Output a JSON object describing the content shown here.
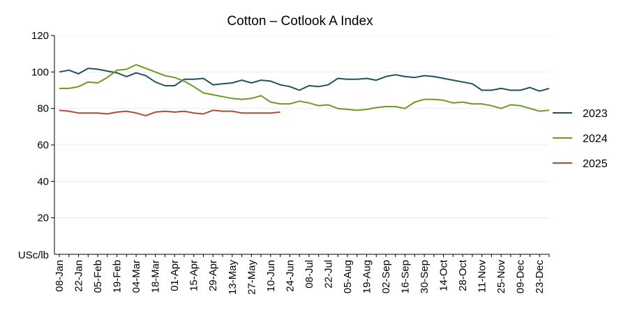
{
  "chart_data": {
    "type": "line",
    "title": "Cotton – Cotlook A Index",
    "ylabel": "",
    "xlabel": "",
    "y_unit_label": "USc/lb",
    "ylim": [
      0,
      120
    ],
    "yticks": [
      20,
      40,
      60,
      80,
      100,
      120
    ],
    "x_ticks": [
      "08-Jan",
      "22-Jan",
      "05-Feb",
      "19-Feb",
      "04-Mar",
      "18-Mar",
      "01-Apr",
      "15-Apr",
      "29-Apr",
      "13-May",
      "27-May",
      "10-Jun",
      "24-Jun",
      "08-Jul",
      "22-Jul",
      "05-Aug",
      "19-Aug",
      "02-Sep",
      "16-Sep",
      "30-Sep",
      "14-Oct",
      "28-Oct",
      "11-Nov",
      "25-Nov",
      "09-Dec",
      "23-Dec"
    ],
    "x_start_label": "08-Jan",
    "x_step_days": 7,
    "grid": "horizontal",
    "legend_position": "right",
    "series": [
      {
        "name": "2023",
        "color": "#1e5260",
        "values": [
          100,
          101,
          99,
          102,
          101.5,
          100.5,
          99.5,
          97.5,
          99.5,
          98,
          94.5,
          92.5,
          92.5,
          96,
          96,
          96.5,
          93,
          93.5,
          94,
          95.5,
          94,
          95.5,
          95,
          93,
          92,
          90,
          92.5,
          92,
          93,
          96.5,
          96,
          96,
          96.5,
          95.5,
          97.5,
          98.5,
          97.5,
          97,
          98,
          97.5,
          96.5,
          95.5,
          94.5,
          93.5,
          90,
          90,
          91,
          90,
          90,
          91.5,
          89.5,
          91
        ]
      },
      {
        "name": "2024",
        "color": "#6e9a22",
        "values": [
          91,
          91,
          92,
          94.5,
          94,
          97,
          101,
          101.5,
          104,
          102,
          100,
          98,
          97,
          95,
          92,
          88.5,
          87.5,
          86.5,
          85.5,
          85,
          85.5,
          87,
          83.5,
          82.5,
          82.5,
          84,
          83,
          81.5,
          82,
          80,
          79.5,
          79,
          79.5,
          80.5,
          81,
          81,
          80,
          83.5,
          85,
          85,
          84.5,
          83,
          83.5,
          82.5,
          82.5,
          81.5,
          80,
          82,
          81.5,
          80,
          78.5,
          79
        ]
      },
      {
        "name": "2025",
        "color": "#b04a32",
        "values": [
          79,
          78.5,
          77.5,
          77.5,
          77.5,
          77,
          78,
          78.5,
          77.5,
          76,
          78,
          78.5,
          78,
          78.5,
          77.5,
          77,
          79,
          78.5,
          78.5,
          77.5,
          77.5,
          77.5,
          77.5,
          78
        ]
      }
    ]
  }
}
